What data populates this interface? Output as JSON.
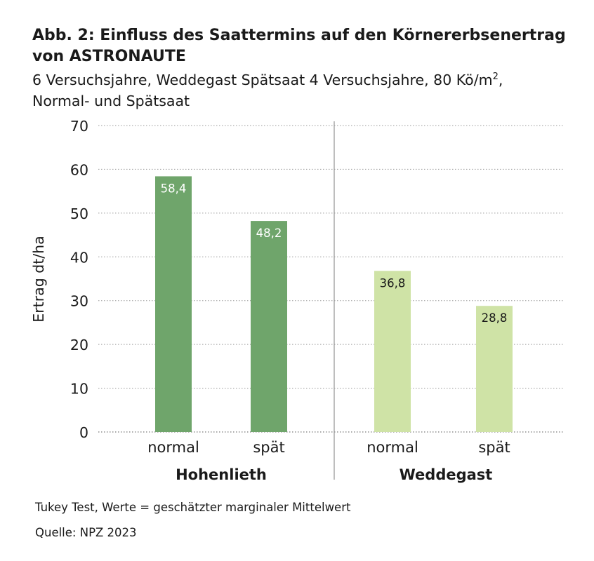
{
  "title_line1": "Abb. 2: Einfluss des Saattermins auf den Körnererbsenertrag",
  "title_line2": "von ASTRONAUTE",
  "subtitle_line1_pre": "6 Versuchsjahre, Weddegast Spätsaat 4 Versuchsjahre, 80 Kö/m",
  "subtitle_line1_sup": "2",
  "subtitle_line1_post": ",",
  "subtitle_line2": "Normal- und Spätsaat",
  "footnote_method": "Tukey Test, Werte = geschätzter marginaler Mittelwert",
  "footnote_source": "Quelle: NPZ 2023",
  "chart_data": {
    "type": "bar",
    "ylabel": "Ertrag dt/ha",
    "ylim": [
      0,
      70
    ],
    "yticks": [
      "0",
      "10",
      "20",
      "30",
      "40",
      "50",
      "60",
      "70"
    ],
    "ytick_values": [
      0,
      10,
      20,
      30,
      40,
      50,
      60,
      70
    ],
    "grid": "dotted horizontal",
    "groups": [
      {
        "name": "Hohenlieth",
        "categories": [
          "normal",
          "spät"
        ],
        "values": [
          58.4,
          48.2
        ],
        "labels": [
          "58,4",
          "48,2"
        ],
        "color": "#6fa56b",
        "label_color": "#ffffff"
      },
      {
        "name": "Weddegast",
        "categories": [
          "normal",
          "spät"
        ],
        "values": [
          36.8,
          28.8
        ],
        "labels": [
          "36,8",
          "28,8"
        ],
        "color": "#cfe3a6",
        "label_color": "#1a1a1a"
      }
    ]
  }
}
